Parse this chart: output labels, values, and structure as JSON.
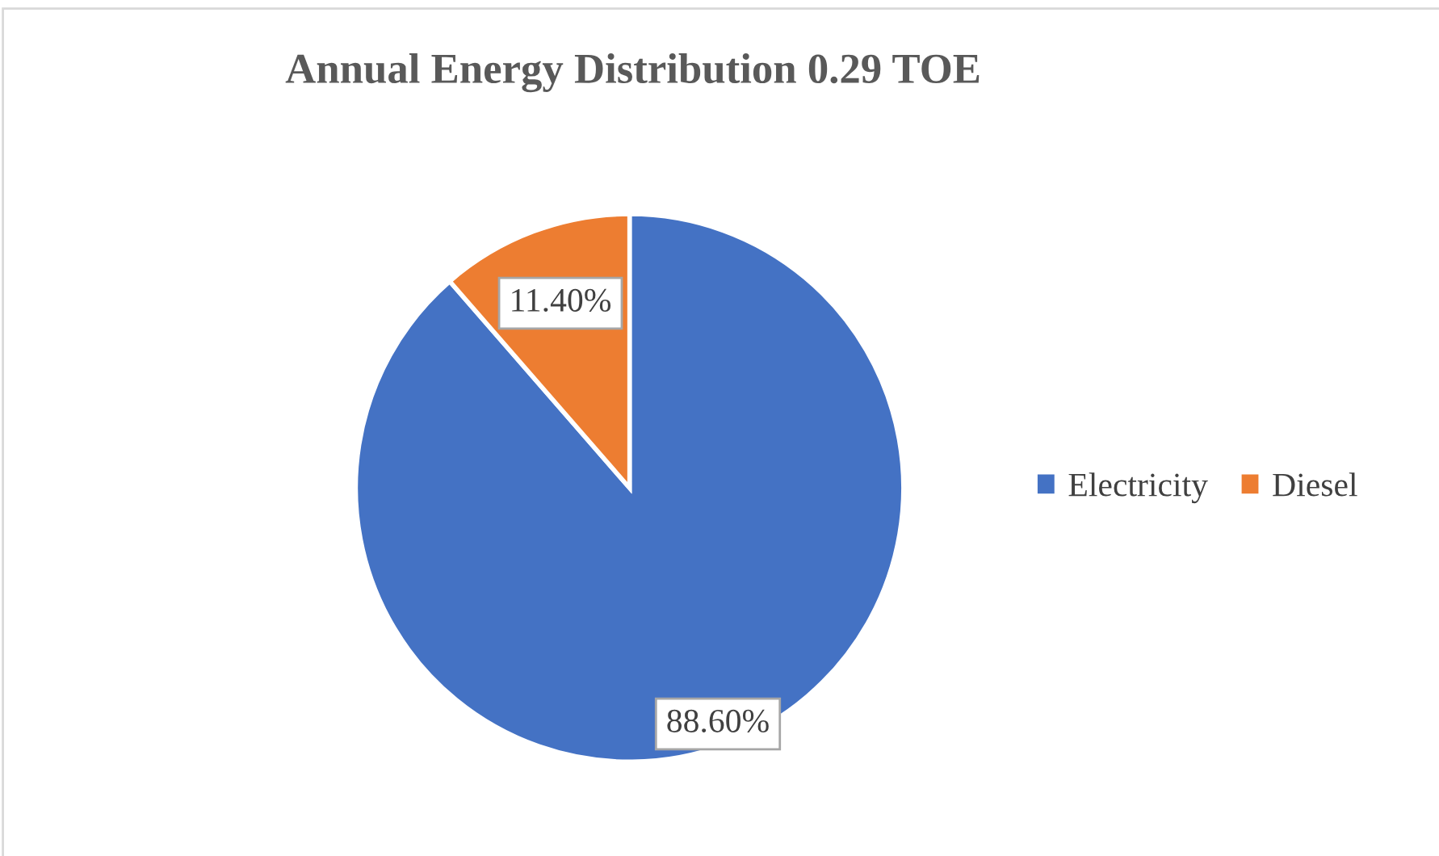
{
  "chart_data": {
    "type": "pie",
    "title": "Annual Energy Distribution 0.29 TOE",
    "categories": [
      "Electricity",
      "Diesel"
    ],
    "values": [
      88.6,
      11.4
    ],
    "colors": [
      "#4472c4",
      "#ed7d31"
    ],
    "value_labels": [
      "88.60%",
      "11.40%"
    ],
    "legend": "right"
  }
}
